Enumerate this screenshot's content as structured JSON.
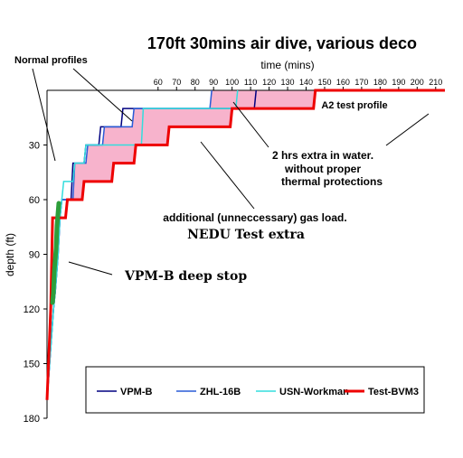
{
  "chart_data": {
    "type": "line",
    "title": "170ft 30mins air dive, various deco",
    "xlabel": "time (mins)",
    "ylabel": "depth (ft)",
    "xlim": [
      0,
      215
    ],
    "ylim": [
      180,
      0
    ],
    "xticks": [
      60,
      70,
      80,
      90,
      100,
      110,
      120,
      130,
      140,
      150,
      160,
      170,
      180,
      190,
      200,
      210
    ],
    "yticks": [
      30,
      60,
      90,
      120,
      150,
      180
    ],
    "grid": false,
    "legend_position": "bottom",
    "series": [
      {
        "name": "VPM-B",
        "color": "#000080",
        "width": 1.5,
        "x": [
          0,
          3.5,
          4.5,
          6,
          7,
          8,
          13,
          14,
          20,
          21,
          28,
          29,
          40,
          41,
          112,
          113
        ],
        "y": [
          170,
          120,
          110,
          90,
          70,
          60,
          60,
          40,
          40,
          30,
          30,
          20,
          20,
          10,
          10,
          0
        ]
      },
      {
        "name": "ZHL-16B",
        "color": "#2a5bd7",
        "width": 1.5,
        "x": [
          0,
          3.5,
          4.5,
          6,
          7,
          8,
          14,
          15,
          21,
          22,
          30,
          31,
          46,
          47,
          88,
          89
        ],
        "y": [
          170,
          120,
          110,
          90,
          70,
          60,
          60,
          40,
          40,
          30,
          30,
          20,
          20,
          10,
          10,
          0
        ]
      },
      {
        "name": "USN-Workman",
        "color": "#33dddd",
        "width": 1.5,
        "x": [
          0,
          3.5,
          4.5,
          6,
          7,
          8,
          9,
          14,
          15,
          20,
          21,
          51,
          52,
          102,
          103
        ],
        "y": [
          170,
          120,
          110,
          90,
          70,
          60,
          50,
          50,
          40,
          40,
          30,
          30,
          10,
          10,
          0
        ]
      },
      {
        "name": "Test-BVM3",
        "color": "#ee0000",
        "width": 3,
        "x": [
          0,
          2,
          3,
          10,
          11,
          19,
          20,
          35,
          36,
          47,
          48,
          65,
          66,
          99,
          100,
          144,
          145,
          215
        ],
        "y": [
          170,
          120,
          70,
          70,
          60,
          60,
          50,
          50,
          40,
          40,
          30,
          30,
          20,
          20,
          10,
          10,
          0,
          0
        ]
      }
    ],
    "annotations": [
      "Normal profiles",
      "A2 test profile",
      "2 hrs extra in  water.",
      "without proper",
      "thermal protections",
      "additional (unneccessary) gas load.",
      "NEDU Test extra",
      "VPM-B deep stop"
    ]
  }
}
